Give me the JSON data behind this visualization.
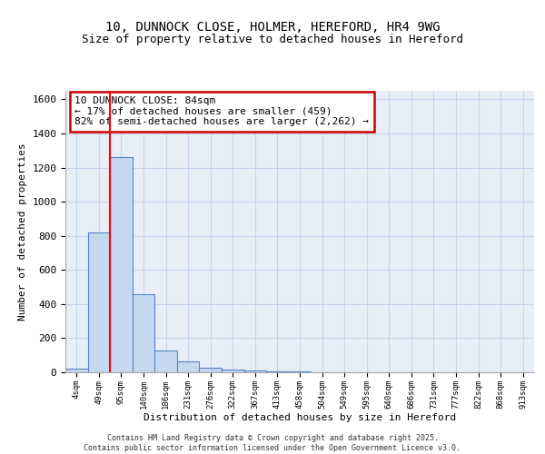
{
  "title1": "10, DUNNOCK CLOSE, HOLMER, HEREFORD, HR4 9WG",
  "title2": "Size of property relative to detached houses in Hereford",
  "xlabel": "Distribution of detached houses by size in Hereford",
  "ylabel": "Number of detached properties",
  "bins": [
    "4sqm",
    "49sqm",
    "95sqm",
    "140sqm",
    "186sqm",
    "231sqm",
    "276sqm",
    "322sqm",
    "367sqm",
    "413sqm",
    "458sqm",
    "504sqm",
    "549sqm",
    "595sqm",
    "640sqm",
    "686sqm",
    "731sqm",
    "777sqm",
    "822sqm",
    "868sqm",
    "913sqm"
  ],
  "values": [
    20,
    820,
    1260,
    460,
    130,
    65,
    25,
    15,
    10,
    5,
    3,
    2,
    2,
    1,
    1,
    1,
    1,
    0,
    0,
    1,
    0
  ],
  "bar_color": "#c5d8f0",
  "bar_edge_color": "#5585c5",
  "red_line_x": 1.5,
  "annotation_text": "10 DUNNOCK CLOSE: 84sqm\n← 17% of detached houses are smaller (459)\n82% of semi-detached houses are larger (2,262) →",
  "annotation_box_color": "#ffffff",
  "annotation_box_edge": "#cc0000",
  "grid_color": "#c8d4ee",
  "background_color": "#e8eef8",
  "ylim": [
    0,
    1650
  ],
  "footer1": "Contains HM Land Registry data © Crown copyright and database right 2025.",
  "footer2": "Contains public sector information licensed under the Open Government Licence v3.0.",
  "title1_fontsize": 10,
  "title2_fontsize": 9,
  "annot_fontsize": 8
}
